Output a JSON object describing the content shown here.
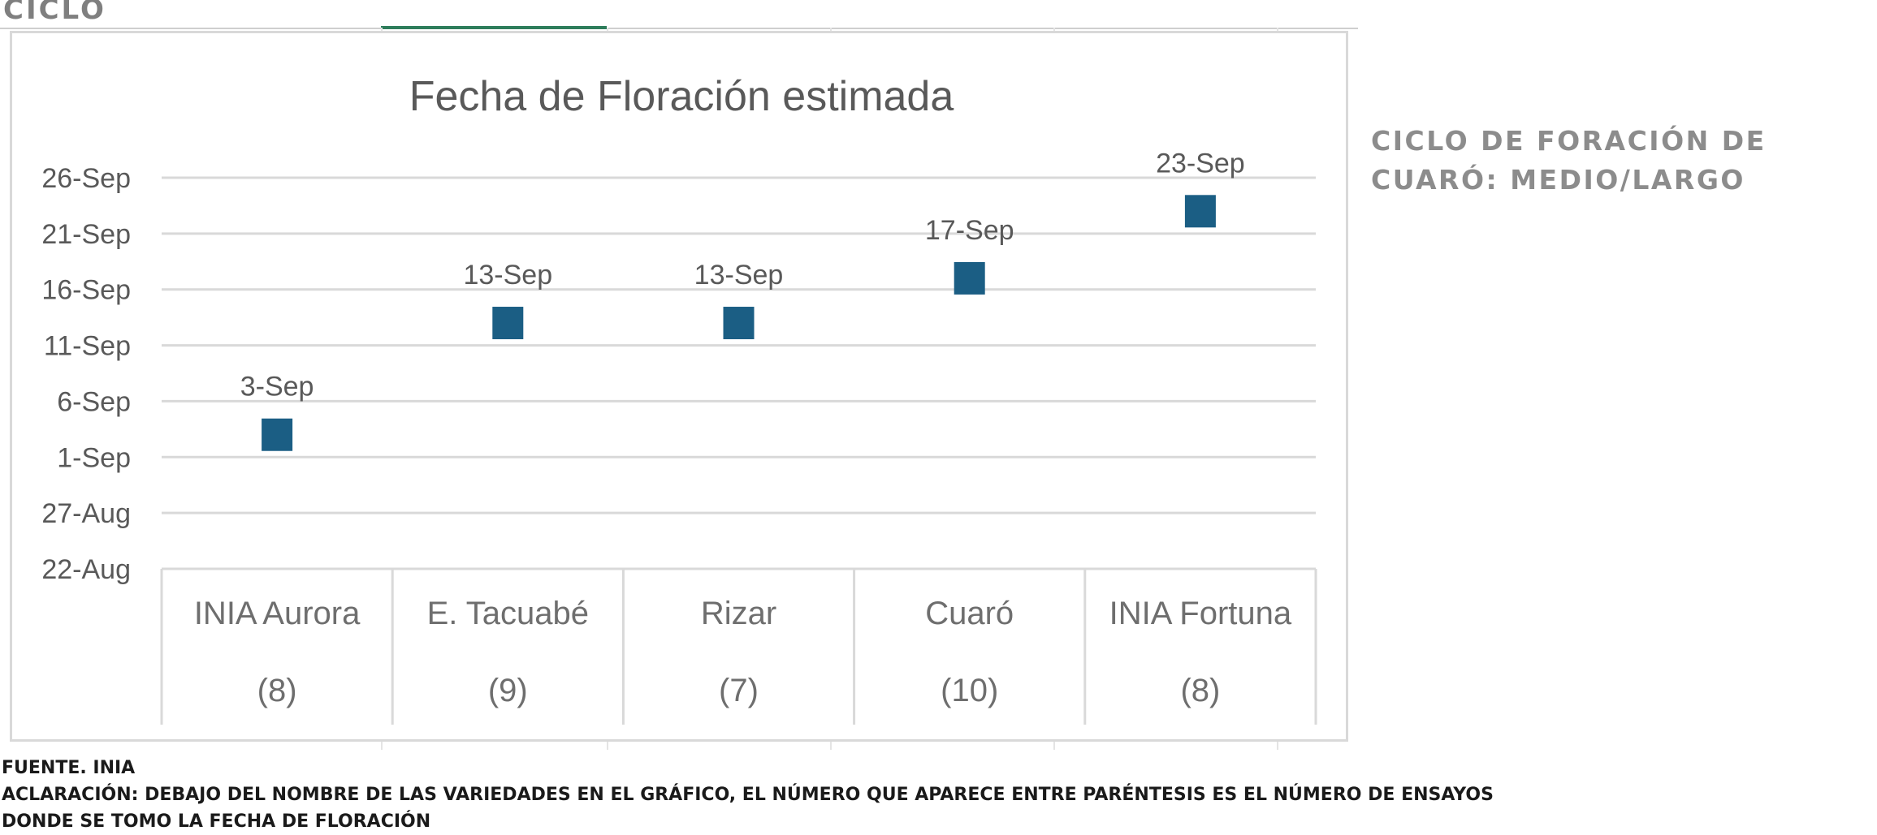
{
  "page": {
    "label": "CICLO",
    "side_note": "CICLO DE FORACIÓN DE CUARÓ: MEDIO/LARGO",
    "footer": {
      "source": "FUENTE. INIA",
      "clarification_line1": "ACLARACIÓN: DEBAJO DEL  NOMBRE DE LAS VARIEDADES EN EL GRÁFICO, EL NÚMERO QUE APARECE ENTRE PARÉNTESIS ES EL NÚMERO DE ENSAYOS",
      "clarification_line2": "DONDE SE TOMO LA FECHA DE FLORACIÓN"
    }
  },
  "chart_data": {
    "type": "scatter",
    "title": "Fecha de Floración estimada",
    "xlabel": "",
    "ylabel": "",
    "categories": [
      "INIA Aurora",
      "E. Tacuabé",
      "Rizar",
      "Cuaró",
      "INIA Fortuna"
    ],
    "trials": [
      "(8)",
      "(9)",
      "(7)",
      "(10)",
      "(8)"
    ],
    "series": [
      {
        "values": [
          "2024-09-03",
          "2024-09-13",
          "2024-09-13",
          "2024-09-17",
          "2024-09-23"
        ],
        "data_labels": [
          "3-Sep",
          "13-Sep",
          "13-Sep",
          "17-Sep",
          "23-Sep"
        ]
      }
    ],
    "ylim": [
      "2024-08-22",
      "2024-09-26"
    ],
    "y_ticks": [
      "2024-08-22",
      "2024-08-27",
      "2024-09-01",
      "2024-09-06",
      "2024-09-11",
      "2024-09-16",
      "2024-09-21",
      "2024-09-26"
    ],
    "y_tick_labels": [
      "22-Aug",
      "27-Aug",
      "1-Sep",
      "6-Sep",
      "11-Sep",
      "16-Sep",
      "21-Sep",
      "26-Sep"
    ],
    "grid": true,
    "legend": "none",
    "marker": "square",
    "marker_color": "#1b5e84",
    "grid_color": "#d9d9d9",
    "text_color": "#595959"
  }
}
